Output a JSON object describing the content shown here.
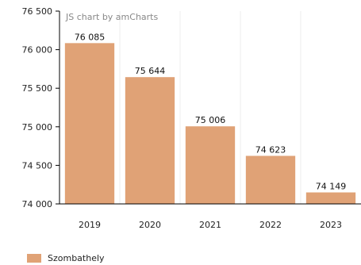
{
  "chart_data": {
    "type": "bar",
    "categories": [
      "2019",
      "2020",
      "2021",
      "2022",
      "2023"
    ],
    "series": [
      {
        "name": "Szombathely",
        "values": [
          76085,
          75644,
          75006,
          74623,
          74149
        ],
        "value_labels": [
          "76 085",
          "75 644",
          "75 006",
          "74 623",
          "74 149"
        ]
      }
    ],
    "ylim": [
      74000,
      76500
    ],
    "yticks": [
      74000,
      74500,
      75000,
      75500,
      76000,
      76500
    ],
    "ytick_labels": [
      "74 000",
      "74 500",
      "75 000",
      "75 500",
      "76 000",
      "76 500"
    ],
    "title": "",
    "xlabel": "",
    "ylabel": "",
    "grid": "vertical",
    "legend_position": "bottom-left",
    "credit": "JS chart by amCharts",
    "colors": {
      "bar": "#e0a276",
      "axis": "#000000",
      "grid": "#ececec"
    }
  }
}
